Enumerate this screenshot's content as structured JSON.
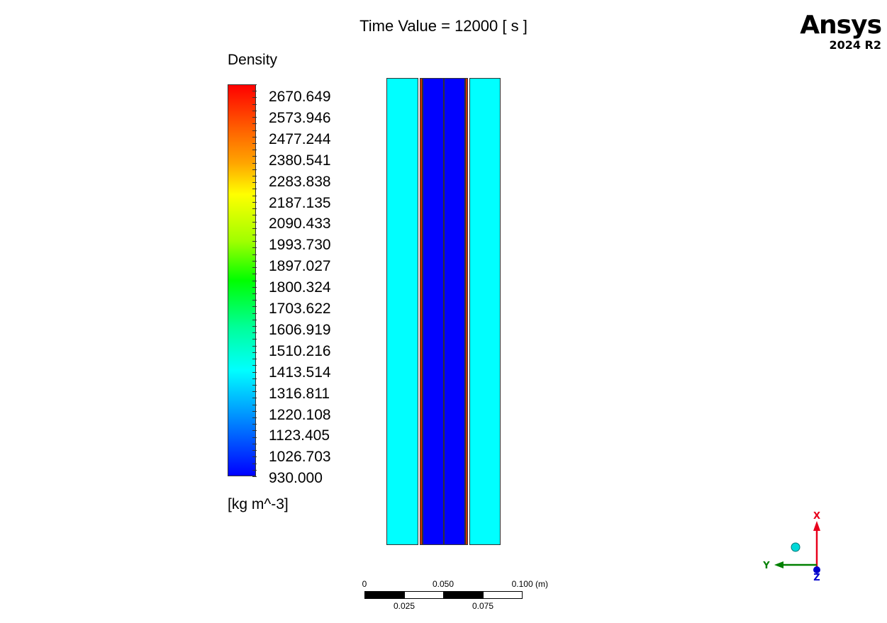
{
  "header": {
    "title": "Time Value = 12000 [ s ]"
  },
  "logo": {
    "brand": "Ansys",
    "version": "2024 R2"
  },
  "legend": {
    "variable": "Density",
    "units": "[kg m^-3]",
    "labels": [
      "2670.649",
      "2573.946",
      "2477.244",
      "2380.541",
      "2283.838",
      "2187.135",
      "2090.433",
      "1993.730",
      "1897.027",
      "1800.324",
      "1703.622",
      "1606.919",
      "1510.216",
      "1413.514",
      "1316.811",
      "1220.108",
      "1123.405",
      "1026.703",
      "930.000"
    ],
    "colors": {
      "max": "#ff0000",
      "mid": "#00ff00",
      "min": "#0000ff"
    }
  },
  "contour": {
    "regions": [
      {
        "name": "outer-left",
        "color": "#00ffff"
      },
      {
        "name": "shell-left",
        "color": "#cc3300"
      },
      {
        "name": "core-left",
        "color": "#0000ff"
      },
      {
        "name": "core-right",
        "color": "#0000ff"
      },
      {
        "name": "shell-right",
        "color": "#cc3300"
      },
      {
        "name": "outer-right",
        "color": "#00ffff"
      }
    ]
  },
  "scale": {
    "top_labels": [
      "0",
      "0.050",
      "0.100  (m)"
    ],
    "bottom_labels": [
      "0.025",
      "0.075"
    ]
  },
  "axes": {
    "x": "X",
    "y": "Y",
    "z": "Z",
    "colors": {
      "x": "#e8001c",
      "y": "#008000",
      "z": "#0000cc"
    }
  }
}
